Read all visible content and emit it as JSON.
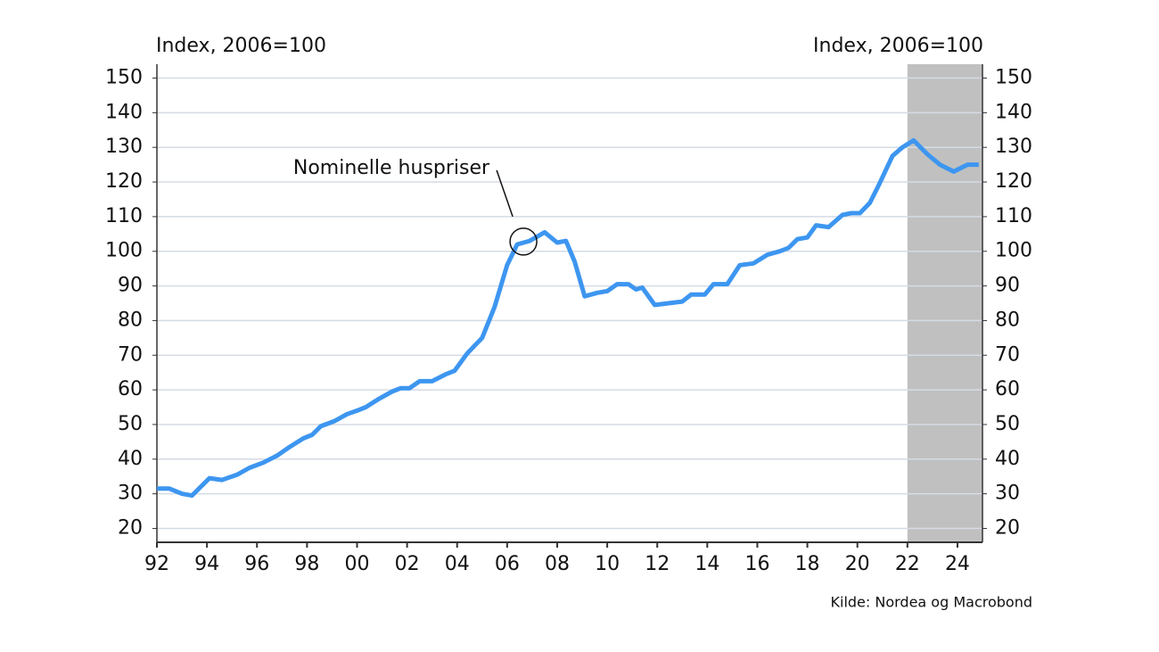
{
  "chart_data": {
    "type": "line",
    "y_label": "Index, 2006=100",
    "y2_label": "Index, 2006=100",
    "source": "Kilde: Nordea og Macrobond",
    "annotation": {
      "text": "Nominelle huspriser",
      "x": 2006.65,
      "y": 102.8
    },
    "shaded_region": [
      2022,
      2025
    ],
    "grid": true,
    "xlim": [
      1992,
      2025
    ],
    "ylim": [
      16,
      154
    ],
    "xticks": [
      {
        "value": 1992,
        "label": "92"
      },
      {
        "value": 1994,
        "label": "94"
      },
      {
        "value": 1996,
        "label": "96"
      },
      {
        "value": 1998,
        "label": "98"
      },
      {
        "value": 2000,
        "label": "00"
      },
      {
        "value": 2002,
        "label": "02"
      },
      {
        "value": 2004,
        "label": "04"
      },
      {
        "value": 2006,
        "label": "06"
      },
      {
        "value": 2008,
        "label": "08"
      },
      {
        "value": 2010,
        "label": "10"
      },
      {
        "value": 2012,
        "label": "12"
      },
      {
        "value": 2014,
        "label": "14"
      },
      {
        "value": 2016,
        "label": "16"
      },
      {
        "value": 2018,
        "label": "18"
      },
      {
        "value": 2020,
        "label": "20"
      },
      {
        "value": 2022,
        "label": "22"
      },
      {
        "value": 2024,
        "label": "24"
      }
    ],
    "yticks": [
      20,
      30,
      40,
      50,
      60,
      70,
      80,
      90,
      100,
      110,
      120,
      130,
      140,
      150
    ],
    "x": [
      1992.0,
      1992.5,
      1993.0,
      1993.4,
      1994.1,
      1994.6,
      1995.2,
      1995.7,
      1996.25,
      1996.8,
      1997.3,
      1997.85,
      1998.2,
      1998.55,
      1999.1,
      1999.6,
      2000.0,
      2000.35,
      2000.9,
      2001.4,
      2001.75,
      2002.1,
      2002.5,
      2003.0,
      2003.55,
      2003.9,
      2004.4,
      2005.0,
      2005.5,
      2006.0,
      2006.4,
      2006.9,
      2007.5,
      2008.0,
      2008.35,
      2008.7,
      2009.1,
      2009.6,
      2010.0,
      2010.4,
      2010.85,
      2011.15,
      2011.4,
      2011.9,
      2012.45,
      2013.0,
      2013.35,
      2013.9,
      2014.25,
      2014.8,
      2015.3,
      2015.85,
      2016.4,
      2016.9,
      2017.25,
      2017.6,
      2018.0,
      2018.35,
      2018.85,
      2019.4,
      2019.75,
      2020.1,
      2020.5,
      2020.85,
      2021.4,
      2021.8,
      2022.25,
      2022.8,
      2023.3,
      2023.85,
      2024.4,
      2024.85
    ],
    "series": [
      {
        "name": "Nominelle huspriser",
        "color": "#3d96f0",
        "values": [
          31.5,
          31.5,
          30,
          29.5,
          34.5,
          34,
          35.5,
          37.5,
          39,
          41,
          43.5,
          46,
          47,
          49.5,
          51,
          53,
          54,
          55,
          57.5,
          59.5,
          60.5,
          60.5,
          62.5,
          62.5,
          64.5,
          65.5,
          70.5,
          75,
          84,
          96,
          102,
          103,
          105.5,
          102.5,
          103,
          97,
          87,
          88,
          88.5,
          90.5,
          90.5,
          89,
          89.5,
          84.5,
          85,
          85.5,
          87.5,
          87.5,
          90.5,
          90.5,
          96,
          96.5,
          99,
          100,
          101,
          103.5,
          104,
          107.5,
          107,
          110.5,
          111,
          111,
          114,
          119,
          127.5,
          130,
          132,
          128,
          125,
          123,
          125,
          125
        ]
      }
    ]
  }
}
